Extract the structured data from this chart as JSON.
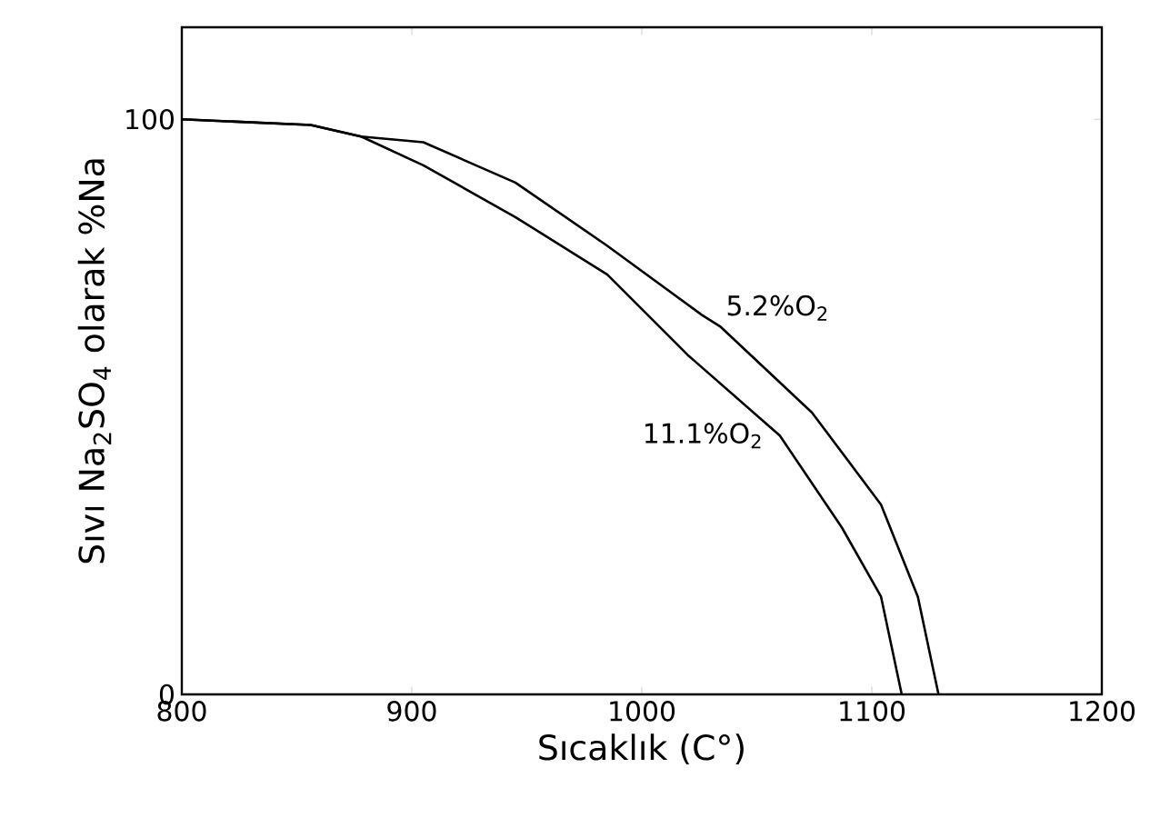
{
  "chart_data": {
    "type": "line",
    "xlabel": "Sıcaklık (C°)",
    "ylabel": "Sıvı Na$_{2}$SO$_{4}$ olarak %Na",
    "xlim": [
      800,
      1200
    ],
    "xticks": [
      800,
      900,
      1000,
      1100,
      1200
    ],
    "ylim": [
      0,
      116
    ],
    "yticks": [
      0,
      100
    ],
    "series": [
      {
        "name": "5.2%O$_{2}$",
        "color": "#000000",
        "x": [
          800,
          856,
          878,
          905,
          945,
          985,
          1026,
          1034,
          1074,
          1104,
          1120,
          1129
        ],
        "values": [
          100,
          99,
          97,
          96,
          89,
          78,
          66,
          64,
          49,
          33,
          17,
          0
        ]
      },
      {
        "name": "11.1%O$_{2}$",
        "color": "#000000",
        "x": [
          800,
          856,
          878,
          905,
          945,
          985,
          1020,
          1060,
          1087,
          1104,
          1113
        ],
        "values": [
          100,
          99,
          97,
          92,
          83,
          73,
          59,
          45,
          29,
          17,
          0
        ]
      }
    ],
    "grid": false,
    "marker": "none",
    "line_style": "solid"
  }
}
